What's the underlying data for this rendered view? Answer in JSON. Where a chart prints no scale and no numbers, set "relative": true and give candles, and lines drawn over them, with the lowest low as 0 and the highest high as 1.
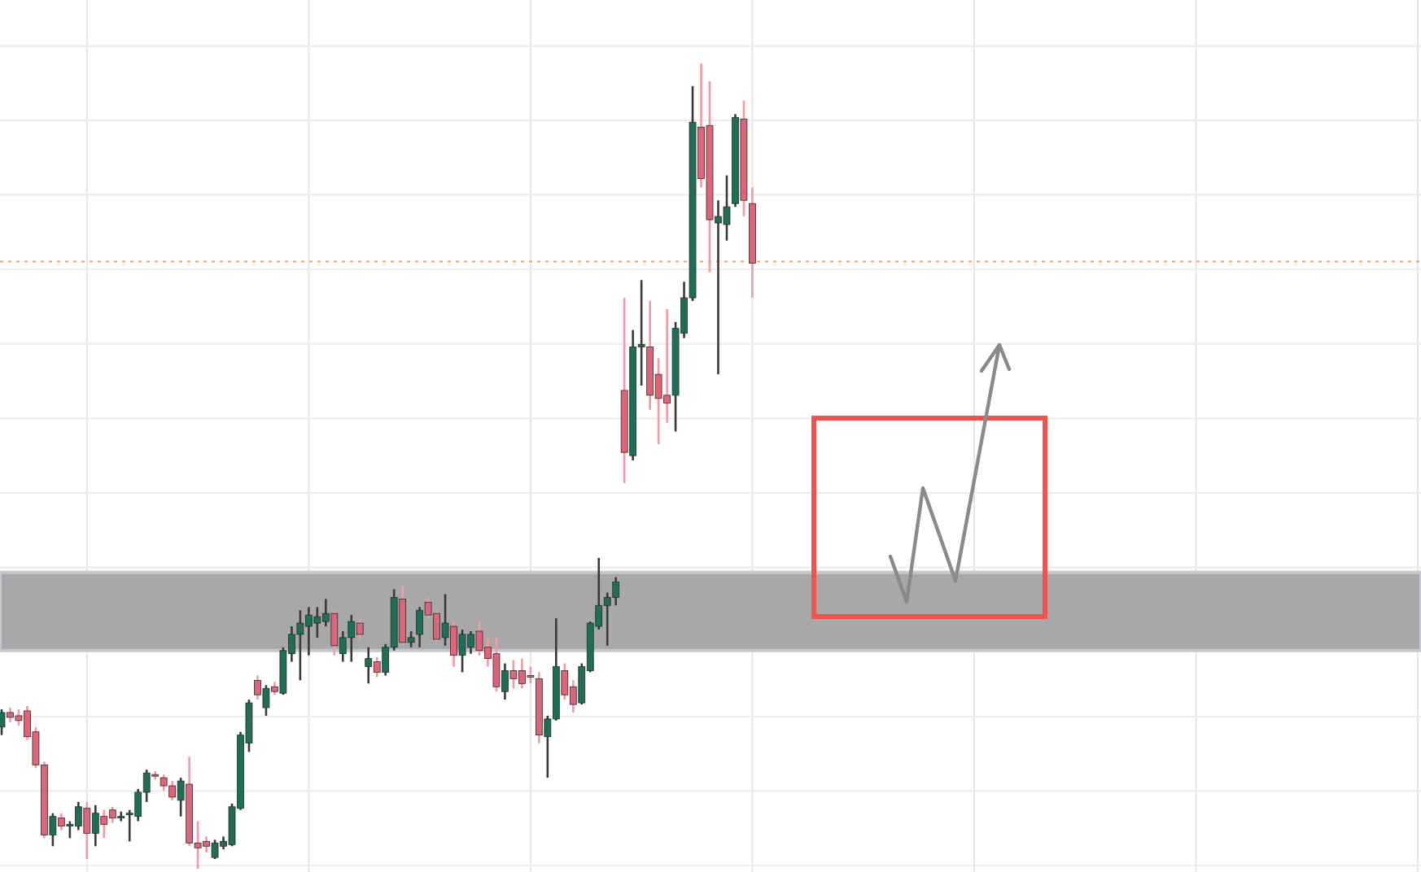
{
  "chart_data": {
    "type": "candlestick",
    "relative": true,
    "grid": true,
    "categories": [
      null,
      null,
      null,
      null,
      null,
      null,
      null,
      null,
      null,
      null,
      null,
      null,
      null,
      null,
      null,
      null,
      null,
      null,
      null,
      null,
      null,
      null,
      null,
      null,
      null,
      null,
      null,
      null,
      null,
      null,
      null,
      null,
      null,
      null,
      null,
      null,
      null,
      null,
      null,
      null,
      null,
      null,
      null,
      null,
      null,
      null,
      null,
      null,
      null,
      null,
      null,
      null,
      null,
      null,
      null,
      null,
      null,
      null,
      null,
      null,
      null,
      null,
      null,
      null,
      null,
      null,
      null,
      null,
      null,
      null,
      null,
      null,
      null,
      null,
      null,
      null,
      null,
      null,
      null,
      null,
      null,
      null,
      null,
      null,
      null,
      null,
      null,
      null,
      null,
      null,
      null,
      null,
      null,
      null,
      null,
      null,
      null,
      null,
      null,
      null,
      null,
      null,
      null,
      null,
      null,
      null,
      null,
      null,
      null,
      null,
      null,
      null,
      null,
      null,
      null,
      null,
      null,
      null,
      null,
      null,
      null,
      null,
      null,
      null,
      null,
      null,
      null,
      null,
      null,
      null,
      null,
      null,
      null,
      null,
      null,
      null,
      null,
      null,
      null,
      null,
      null,
      null,
      null,
      null,
      null,
      null,
      null,
      null,
      null,
      null,
      null,
      null,
      null,
      null,
      null,
      null,
      null,
      null,
      null,
      null,
      null,
      null,
      null,
      null,
      null,
      null,
      null
    ],
    "ohlc": [
      [
        0.176,
        0.198,
        0.166,
        0.194
      ],
      [
        0.194,
        0.2,
        0.182,
        0.188
      ],
      [
        0.19,
        0.198,
        0.178,
        0.184
      ],
      [
        0.196,
        0.202,
        0.16,
        0.164
      ],
      [
        0.17,
        0.176,
        0.125,
        0.129
      ],
      [
        0.129,
        0.133,
        0.038,
        0.042
      ],
      [
        0.042,
        0.069,
        0.028,
        0.065
      ],
      [
        0.063,
        0.069,
        0.048,
        0.053
      ],
      [
        0.053,
        0.059,
        0.038,
        0.055
      ],
      [
        0.053,
        0.083,
        0.048,
        0.077
      ],
      [
        0.075,
        0.083,
        0.012,
        0.044
      ],
      [
        0.044,
        0.079,
        0.028,
        0.069
      ],
      [
        0.065,
        0.073,
        0.038,
        0.055
      ],
      [
        0.073,
        0.077,
        0.057,
        0.063
      ],
      [
        0.063,
        0.071,
        0.059,
        0.065
      ],
      [
        0.067,
        0.073,
        0.034,
        0.069
      ],
      [
        0.065,
        0.099,
        0.059,
        0.095
      ],
      [
        0.095,
        0.123,
        0.083,
        0.119
      ],
      [
        0.117,
        0.121,
        0.111,
        0.115
      ],
      [
        0.113,
        0.117,
        0.097,
        0.103
      ],
      [
        0.103,
        0.109,
        0.085,
        0.089
      ],
      [
        0.085,
        0.113,
        0.065,
        0.109
      ],
      [
        0.105,
        0.139,
        0.028,
        0.032
      ],
      [
        0.032,
        0.059,
        0,
        0.026
      ],
      [
        0.034,
        0.04,
        0.02,
        0.028
      ],
      [
        0.014,
        0.036,
        0.012,
        0.032
      ],
      [
        0.028,
        0.04,
        0.024,
        0.034
      ],
      [
        0.03,
        0.081,
        0.028,
        0.077
      ],
      [
        0.075,
        0.17,
        0.073,
        0.166
      ],
      [
        0.156,
        0.21,
        0.145,
        0.206
      ],
      [
        0.234,
        0.24,
        0.21,
        0.216
      ],
      [
        0.2,
        0.228,
        0.19,
        0.224
      ],
      [
        0.226,
        0.232,
        0.216,
        0.22
      ],
      [
        0.218,
        0.275,
        0.216,
        0.271
      ],
      [
        0.267,
        0.301,
        0.257,
        0.291
      ],
      [
        0.291,
        0.321,
        0.234,
        0.305
      ],
      [
        0.301,
        0.325,
        0.265,
        0.315
      ],
      [
        0.305,
        0.325,
        0.287,
        0.313
      ],
      [
        0.307,
        0.335,
        0.301,
        0.317
      ],
      [
        0.317,
        0.321,
        0.265,
        0.277
      ],
      [
        0.267,
        0.295,
        0.257,
        0.287
      ],
      [
        0.287,
        0.315,
        0.257,
        0.307
      ],
      [
        0.305,
        0.309,
        0.285,
        0.291
      ],
      [
        0.251,
        0.275,
        0.23,
        0.261
      ],
      [
        0.257,
        0.263,
        0.238,
        0.244
      ],
      [
        0.244,
        0.279,
        0.24,
        0.275
      ],
      [
        0.275,
        0.347,
        0.271,
        0.337
      ],
      [
        0.335,
        0.352,
        0.277,
        0.281
      ],
      [
        0.281,
        0.295,
        0.275,
        0.287
      ],
      [
        0.291,
        0.325,
        0.275,
        0.321
      ],
      [
        0.331,
        0.337,
        0.311,
        0.315
      ],
      [
        0.317,
        0.321,
        0.281,
        0.285
      ],
      [
        0.287,
        0.341,
        0.277,
        0.305
      ],
      [
        0.301,
        0.307,
        0.251,
        0.265
      ],
      [
        0.265,
        0.297,
        0.244,
        0.291
      ],
      [
        0.275,
        0.295,
        0.267,
        0.291
      ],
      [
        0.295,
        0.307,
        0.265,
        0.271
      ],
      [
        0.275,
        0.287,
        0.251,
        0.261
      ],
      [
        0.267,
        0.287,
        0.22,
        0.226
      ],
      [
        0.22,
        0.255,
        0.21,
        0.246
      ],
      [
        0.246,
        0.259,
        0.224,
        0.236
      ],
      [
        0.246,
        0.261,
        0.224,
        0.23
      ],
      [
        0.24,
        0.251,
        0.23,
        0.238
      ],
      [
        0.236,
        0.244,
        0.156,
        0.166
      ],
      [
        0.164,
        0.19,
        0.113,
        0.186
      ],
      [
        0.186,
        0.311,
        0.184,
        0.251
      ],
      [
        0.246,
        0.255,
        0.21,
        0.216
      ],
      [
        0.226,
        0.234,
        0.194,
        0.204
      ],
      [
        0.206,
        0.255,
        0.204,
        0.251
      ],
      [
        0.246,
        0.307,
        0.244,
        0.305
      ],
      [
        0.301,
        0.386,
        0.297,
        0.327
      ],
      [
        0.327,
        0.343,
        0.277,
        0.337
      ],
      [
        0.337,
        0.362,
        0.327,
        0.356
      ],
      [
        0.594,
        0.709,
        0.479,
        0.517
      ],
      [
        0.513,
        0.669,
        0.507,
        0.648
      ],
      [
        0.648,
        0.731,
        0.6,
        0.651
      ],
      [
        0.648,
        0.705,
        0.57,
        0.588
      ],
      [
        0.614,
        0.634,
        0.527,
        0.584
      ],
      [
        0.588,
        0.695,
        0.554,
        0.578
      ],
      [
        0.588,
        0.679,
        0.543,
        0.671
      ],
      [
        0.665,
        0.729,
        0.659,
        0.709
      ],
      [
        0.709,
        0.972,
        0.705,
        0.927
      ],
      [
        0.921,
        1,
        0.846,
        0.857
      ],
      [
        0.923,
        0.978,
        0.741,
        0.806
      ],
      [
        0.802,
        0.83,
        0.614,
        0.81
      ],
      [
        0.8,
        0.861,
        0.78,
        0.822
      ],
      [
        0.826,
        0.937,
        0.822,
        0.933
      ],
      [
        0.931,
        0.954,
        0.81,
        0.83
      ],
      [
        0.826,
        0.846,
        0.709,
        0.752
      ],
      null,
      null,
      null,
      null,
      null,
      null,
      null,
      null,
      null,
      null,
      null,
      null,
      null,
      null,
      null,
      null,
      null,
      null,
      null,
      null,
      null,
      null,
      null,
      null,
      null,
      null,
      null,
      null,
      null,
      null,
      null,
      null,
      null,
      null,
      null,
      null,
      null,
      null,
      null,
      null,
      null,
      null,
      null,
      null,
      null,
      null,
      null,
      null,
      null,
      null,
      null,
      null,
      null,
      null,
      null,
      null,
      null,
      null,
      null,
      null,
      null,
      null,
      null,
      null,
      null,
      null,
      null,
      null,
      null,
      null,
      null,
      null,
      null,
      null,
      null,
      null,
      null,
      null
    ],
    "bands": [
      {
        "axis": "y",
        "from": 0.271,
        "to": 0.368,
        "color": "#a8a8a8"
      }
    ],
    "ref_lines": [
      {
        "axis": "y",
        "value": 0.754,
        "color": "#f4a06a",
        "line_style": "dotted"
      }
    ]
  }
}
